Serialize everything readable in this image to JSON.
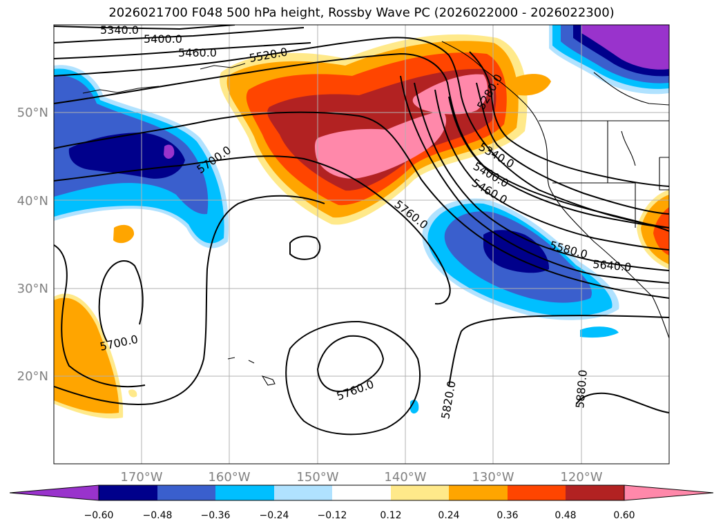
{
  "title": "2026021700 F048 500 hPa height, Rossby Wave PC (2026022000 - 2026022300)",
  "lat_labels": [
    "50°N",
    "40°N",
    "30°N",
    "20°N"
  ],
  "lon_labels": [
    "170°W",
    "160°W",
    "150°W",
    "140°W",
    "130°W",
    "120°W"
  ],
  "contour_labels": [
    "5340.0",
    "5400.0",
    "5460.0",
    "5520.0",
    "5700.0",
    "5760.0",
    "5280.0",
    "5340.0",
    "5400.0",
    "5460.0",
    "5580.0",
    "5640.0",
    "5700.0",
    "5760.0",
    "5820.0",
    "5880.0"
  ],
  "colorbar": {
    "ticks": [
      "−0.60",
      "−0.48",
      "−0.36",
      "−0.24",
      "−0.12",
      "0.12",
      "0.24",
      "0.36",
      "0.48",
      "0.60"
    ],
    "colors": [
      "#9933cc",
      "#00008b",
      "#3a5fcd",
      "#00bfff",
      "#b0e2ff",
      "#ffffff",
      "#ffe98a",
      "#ffa500",
      "#ff4500",
      "#b22222",
      "#ff88aa"
    ]
  },
  "map_extent": {
    "lon_min": -180,
    "lon_max": -110,
    "lat_min": 10,
    "lat_max": 60
  }
}
